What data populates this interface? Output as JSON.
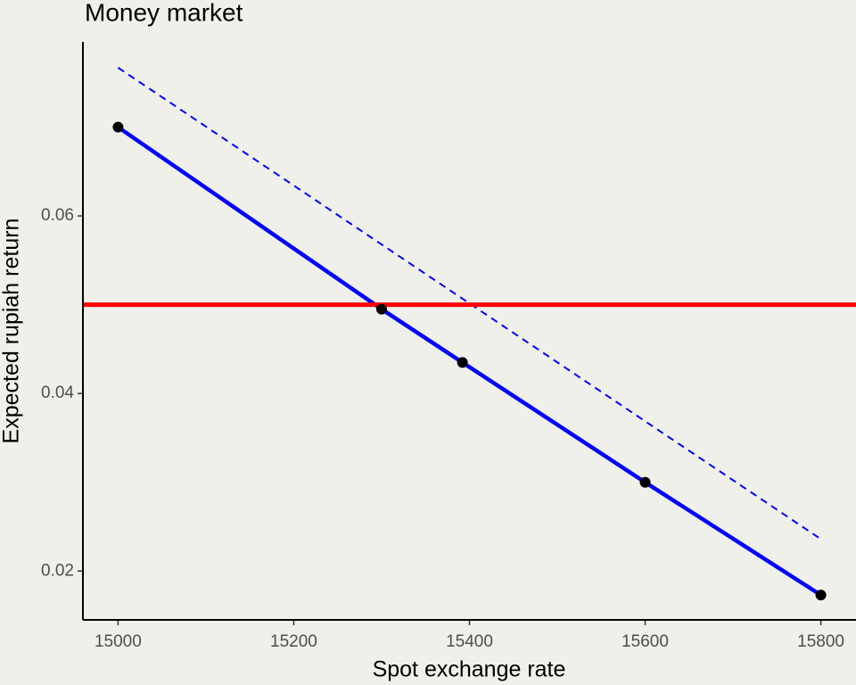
{
  "chart_data": {
    "type": "line",
    "title": "Money market",
    "x_label": "Spot exchange rate",
    "y_label": "Expected rupiah return",
    "xlim": [
      14960,
      15840
    ],
    "ylim": [
      0.0145,
      0.0796
    ],
    "xticks": [
      15000,
      15200,
      15400,
      15600,
      15800
    ],
    "yticks": [
      0.02,
      0.04,
      0.06
    ],
    "series": [
      {
        "color": "#0000ff",
        "style": "solid",
        "markers": true,
        "x": [
          15000,
          15300,
          15392,
          15600,
          15800
        ],
        "values": [
          0.07,
          0.0495,
          0.0435,
          0.03,
          0.0173
        ]
      },
      {
        "color": "#0000ff",
        "style": "dashed",
        "markers": false,
        "x": [
          15000,
          15800
        ],
        "values": [
          0.0767,
          0.0236
        ]
      }
    ],
    "hline": {
      "value": 0.05,
      "color": "#ff0000"
    }
  }
}
